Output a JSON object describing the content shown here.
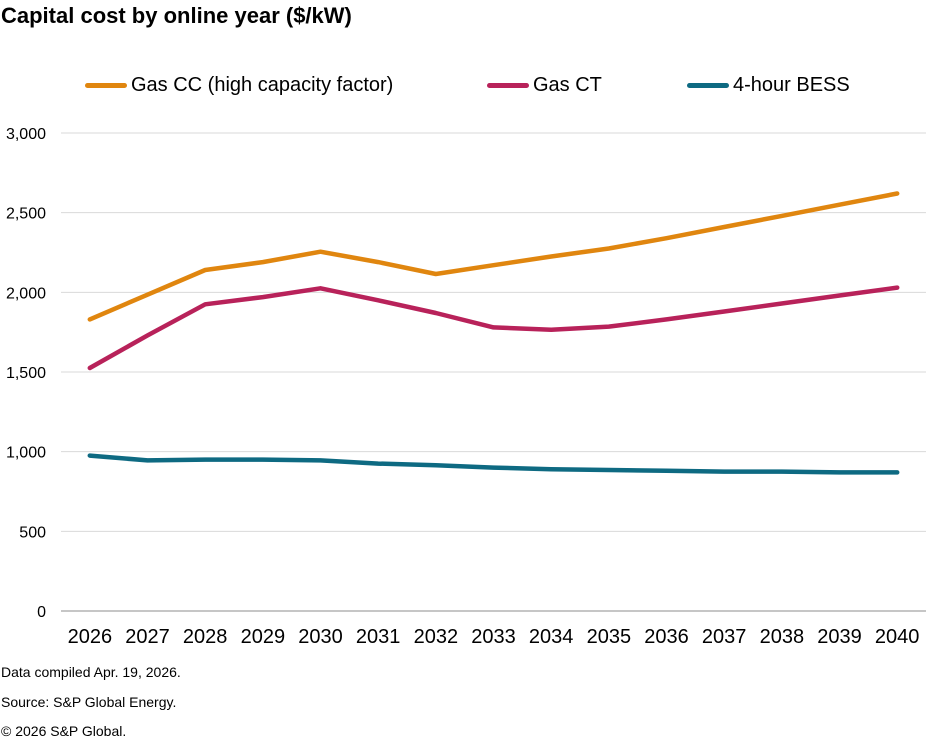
{
  "chart_data": {
    "type": "line",
    "title": "Capital cost by online year ($/kW)",
    "xlabel": "",
    "ylabel": "",
    "ylim": [
      0,
      3000
    ],
    "yticks": [
      "0",
      "500",
      "1,000",
      "1,500",
      "2,000",
      "2,500",
      "3,000"
    ],
    "ytick_values": [
      0,
      500,
      1000,
      1500,
      2000,
      2500,
      3000
    ],
    "categories": [
      "2026",
      "2027",
      "2028",
      "2029",
      "2030",
      "2031",
      "2032",
      "2033",
      "2034",
      "2035",
      "2036",
      "2037",
      "2038",
      "2039",
      "2040"
    ],
    "grid": true,
    "legend_position": "top",
    "series": [
      {
        "name": "Gas CC (high capacity factor)",
        "color": "#e0860f",
        "values": [
          1830,
          1985,
          2140,
          2190,
          2255,
          2190,
          2115,
          2170,
          2225,
          2275,
          2340,
          2410,
          2480,
          2550,
          2620
        ]
      },
      {
        "name": "Gas CT",
        "color": "#b8225a",
        "values": [
          1525,
          1730,
          1925,
          1970,
          2025,
          1950,
          1870,
          1780,
          1765,
          1785,
          1830,
          1880,
          1930,
          1980,
          2030
        ]
      },
      {
        "name": "4-hour BESS",
        "color": "#0e6a82",
        "values": [
          975,
          945,
          950,
          950,
          945,
          925,
          915,
          900,
          890,
          885,
          880,
          875,
          875,
          870,
          870
        ]
      }
    ]
  },
  "footer": {
    "compiled": "Data compiled Apr. 19, 2026.",
    "source": "Source: S&P Global Energy.",
    "copyright": "© 2026 S&P Global."
  }
}
